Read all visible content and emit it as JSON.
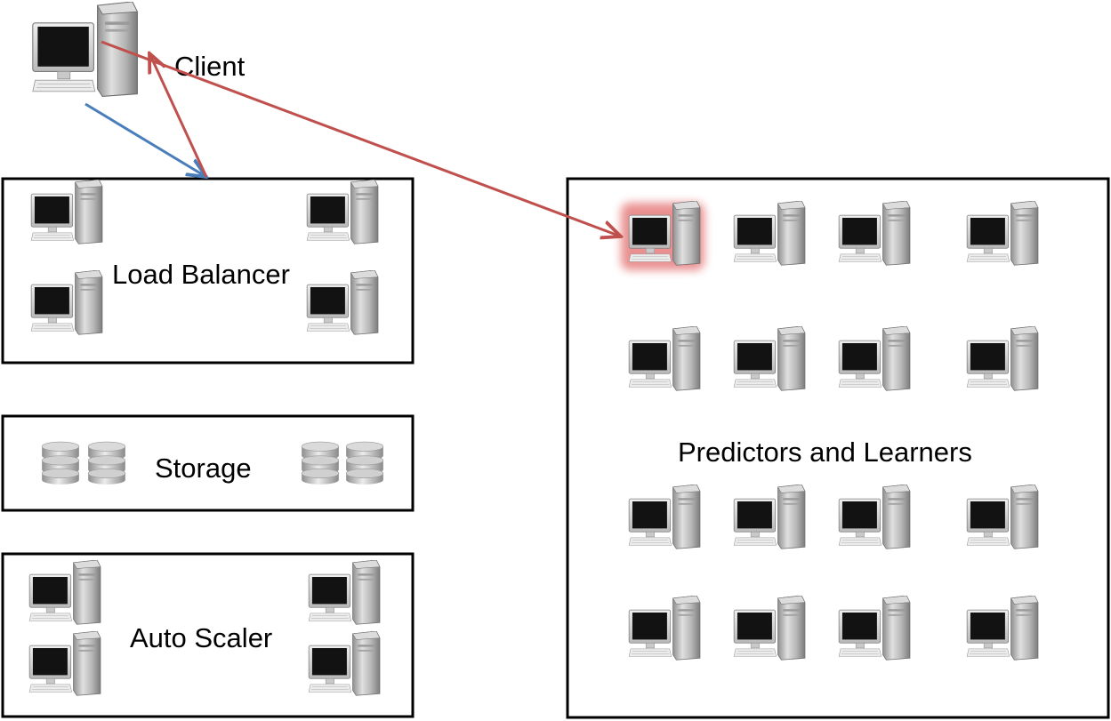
{
  "client": {
    "label": "Client",
    "icon": "computer-icon"
  },
  "load_balancer": {
    "label": "Load Balancer",
    "icon": "computer-icon",
    "node_count": 4
  },
  "storage": {
    "label": "Storage",
    "icon": "database-icon",
    "node_count": 4
  },
  "auto_scaler": {
    "label": "Auto Scaler",
    "icon": "computer-icon",
    "node_count": 4
  },
  "predictors_learners": {
    "label": "Predictors and Learners",
    "icon": "computer-icon",
    "node_count": 16,
    "highlighted_node": 1
  },
  "connections": [
    {
      "from": "client",
      "to": "load_balancer",
      "color": "#4a7ebb"
    },
    {
      "from": "load_balancer",
      "to": "client",
      "color": "#c0504d"
    },
    {
      "from": "client",
      "to": "predictors_learners",
      "color": "#c0504d"
    }
  ],
  "colors": {
    "border": "#000000",
    "request_arrow": "#4a7ebb",
    "response_arrow": "#c0504d",
    "highlight_glow": "#e36c6c"
  }
}
